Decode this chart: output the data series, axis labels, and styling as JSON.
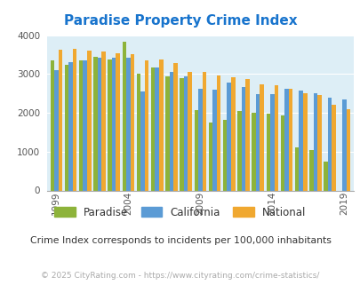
{
  "title": "Paradise Property Crime Index",
  "title_color": "#1874cd",
  "subtitle": "Crime Index corresponds to incidents per 100,000 inhabitants",
  "footer": "© 2025 CityRating.com - https://www.cityrating.com/crime-statistics/",
  "years": [
    1999,
    2000,
    2001,
    2002,
    2003,
    2004,
    2005,
    2006,
    2007,
    2008,
    2009,
    2010,
    2011,
    2012,
    2013,
    2014,
    2015,
    2016,
    2017,
    2018,
    2019
  ],
  "paradise": [
    3340,
    3230,
    3360,
    3450,
    3380,
    3840,
    3000,
    3160,
    2940,
    2890,
    2060,
    1760,
    1820,
    2040,
    1990,
    1970,
    1930,
    1100,
    1040,
    740,
    0
  ],
  "california": [
    3110,
    3300,
    3340,
    3410,
    3420,
    3420,
    2560,
    3170,
    3060,
    2950,
    2630,
    2590,
    2770,
    2670,
    2470,
    2470,
    2630,
    2580,
    2510,
    2380,
    2350
  ],
  "national": [
    3620,
    3650,
    3610,
    3570,
    3540,
    3510,
    3340,
    3370,
    3280,
    3060,
    3050,
    2960,
    2910,
    2870,
    2730,
    2720,
    2620,
    2500,
    2460,
    2200,
    2100
  ],
  "paradise_color": "#8db33a",
  "california_color": "#5b9bd5",
  "national_color": "#f0a830",
  "bg_color": "#ddeef6",
  "ylim": [
    0,
    4000
  ],
  "yticks": [
    0,
    1000,
    2000,
    3000,
    4000
  ],
  "xtick_years": [
    1999,
    2004,
    2009,
    2014,
    2019
  ],
  "bar_width": 0.28,
  "figsize": [
    4.06,
    3.3
  ],
  "dpi": 100
}
